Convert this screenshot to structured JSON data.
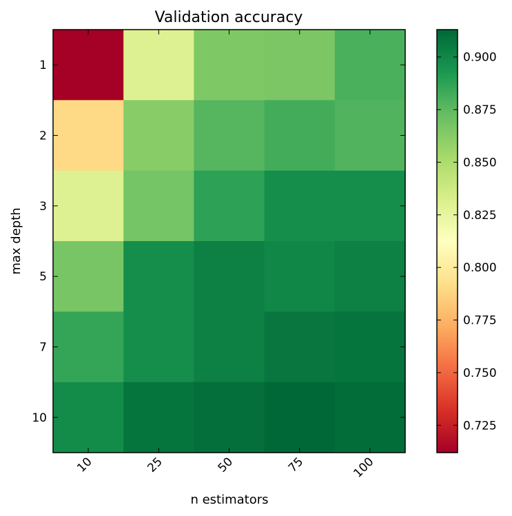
{
  "chart_data": {
    "type": "heatmap",
    "title": "Validation accuracy",
    "xlabel": "n estimators",
    "ylabel": "max depth",
    "x_categories": [
      "10",
      "25",
      "50",
      "75",
      "100"
    ],
    "y_categories": [
      "1",
      "2",
      "3",
      "5",
      "7",
      "10"
    ],
    "values": [
      [
        0.712,
        0.83,
        0.865,
        0.866,
        0.88
      ],
      [
        0.79,
        0.862,
        0.877,
        0.882,
        0.878
      ],
      [
        0.83,
        0.868,
        0.888,
        0.897,
        0.897
      ],
      [
        0.867,
        0.897,
        0.903,
        0.9,
        0.903
      ],
      [
        0.886,
        0.897,
        0.903,
        0.907,
        0.908
      ],
      [
        0.898,
        0.908,
        0.91,
        0.913,
        0.911
      ]
    ],
    "colorbar": {
      "colormap": "RdYlGn",
      "range": [
        0.712,
        0.913
      ],
      "ticks": [
        0.725,
        0.75,
        0.775,
        0.8,
        0.825,
        0.85,
        0.875,
        0.9
      ],
      "tick_labels": [
        "0.725",
        "0.750",
        "0.775",
        "0.800",
        "0.825",
        "0.850",
        "0.875",
        "0.900"
      ]
    },
    "grid": false
  }
}
